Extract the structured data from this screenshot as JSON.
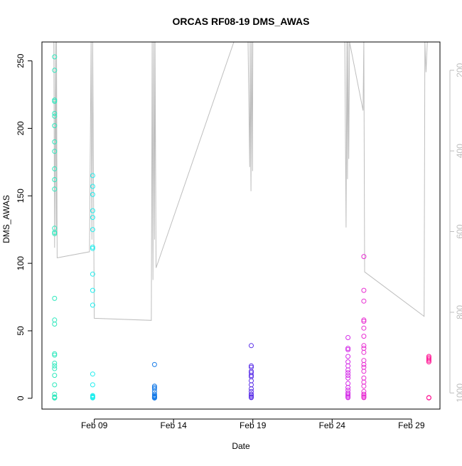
{
  "chart_data": {
    "type": "scatter",
    "title": "ORCAS RF08-19 DMS_AWAS",
    "xlabel": "Date",
    "ylabel": "DMS_AWAS",
    "x_ticks": [
      {
        "day": 9,
        "label": "Feb 09"
      },
      {
        "day": 14,
        "label": "Feb 14"
      },
      {
        "day": 19,
        "label": "Feb 19"
      },
      {
        "day": 24,
        "label": "Feb 24"
      },
      {
        "day": 29,
        "label": "Feb 29"
      }
    ],
    "x_range_days": [
      5.7,
      30.8
    ],
    "ylim": [
      -8,
      264
    ],
    "y_ticks": [
      "0",
      "50",
      "100",
      "150",
      "200",
      "250"
    ],
    "y2_ticks": [
      "200",
      "400",
      "600",
      "800",
      "1000"
    ],
    "y2_range": [
      130,
      1040
    ],
    "colors": {
      "axis": "#000000",
      "secondary": "#bebebe",
      "pressure_line": "#bebebe"
    },
    "flights": [
      {
        "day": 6.5,
        "color": "#2ee8bd",
        "values": [
          253,
          243,
          221,
          220,
          211,
          209,
          202,
          190,
          183,
          170,
          162,
          155,
          126,
          123,
          122,
          74,
          58,
          55,
          33,
          32,
          26,
          24,
          22,
          17,
          10,
          3,
          1,
          0.5,
          0.3,
          0.2
        ]
      },
      {
        "day": 8.9,
        "color": "#22eeee",
        "values": [
          165,
          157,
          151,
          139,
          134,
          125,
          112,
          111,
          92,
          80,
          69,
          18,
          10,
          2,
          1.5,
          1,
          0.8,
          0.5,
          0.3
        ]
      },
      {
        "day": 12.8,
        "color": "#1a7de8",
        "values": [
          25,
          9,
          8,
          7,
          5,
          3,
          2,
          1.5,
          1,
          0.8,
          0.5,
          0.3,
          0.2
        ]
      },
      {
        "day": 18.9,
        "color": "#5a2ee8",
        "values": [
          39,
          24,
          23,
          20,
          19,
          17,
          16,
          13,
          10,
          7,
          5,
          3,
          2,
          1,
          0.5
        ]
      },
      {
        "day": 25.0,
        "color": "#d42ee8",
        "values": [
          45,
          37,
          36,
          31,
          27,
          24,
          21,
          19,
          17,
          15,
          11,
          8,
          6,
          4,
          3,
          2,
          1,
          0.5
        ]
      },
      {
        "day": 26.0,
        "color": "#e82ed2",
        "values": [
          105,
          80,
          72,
          58,
          57,
          52,
          46,
          39,
          37,
          34,
          28,
          25,
          23,
          20,
          15,
          12,
          9,
          5,
          3,
          2,
          1,
          0.5
        ]
      },
      {
        "day": 30.1,
        "color": "#ff1493",
        "values": [
          31,
          30,
          29,
          28,
          27,
          0.5,
          0.3
        ]
      }
    ],
    "pressure_trace": [
      {
        "day": 6.45,
        "p": 130
      },
      {
        "day": 6.5,
        "p": 640
      },
      {
        "day": 6.55,
        "p": 130
      },
      {
        "day": 6.6,
        "p": 610
      },
      {
        "day": 6.62,
        "p": 130
      },
      {
        "day": 6.66,
        "p": 665
      },
      {
        "day": 8.7,
        "p": 650
      },
      {
        "day": 8.8,
        "p": 130
      },
      {
        "day": 8.85,
        "p": 620
      },
      {
        "day": 8.9,
        "p": 130
      },
      {
        "day": 9.0,
        "p": 815
      },
      {
        "day": 12.6,
        "p": 820
      },
      {
        "day": 12.65,
        "p": 130
      },
      {
        "day": 12.7,
        "p": 720
      },
      {
        "day": 12.75,
        "p": 130
      },
      {
        "day": 12.8,
        "p": 620
      },
      {
        "day": 12.83,
        "p": 130
      },
      {
        "day": 12.9,
        "p": 690
      },
      {
        "day": 17.8,
        "p": 130
      },
      {
        "day": 18.7,
        "p": 130
      },
      {
        "day": 18.8,
        "p": 440
      },
      {
        "day": 18.83,
        "p": 130
      },
      {
        "day": 18.88,
        "p": 500
      },
      {
        "day": 18.92,
        "p": 130
      },
      {
        "day": 18.98,
        "p": 450
      },
      {
        "day": 19.0,
        "p": 130
      },
      {
        "day": 24.8,
        "p": 130
      },
      {
        "day": 24.88,
        "p": 590
      },
      {
        "day": 24.93,
        "p": 130
      },
      {
        "day": 24.97,
        "p": 470
      },
      {
        "day": 25.0,
        "p": 130
      },
      {
        "day": 25.05,
        "p": 420
      },
      {
        "day": 25.1,
        "p": 130
      },
      {
        "day": 25.95,
        "p": 300
      },
      {
        "day": 26.0,
        "p": 130
      },
      {
        "day": 26.05,
        "p": 700
      },
      {
        "day": 29.8,
        "p": 810
      },
      {
        "day": 29.85,
        "p": 130
      },
      {
        "day": 29.92,
        "p": 205
      },
      {
        "day": 30.0,
        "p": 130
      }
    ]
  }
}
